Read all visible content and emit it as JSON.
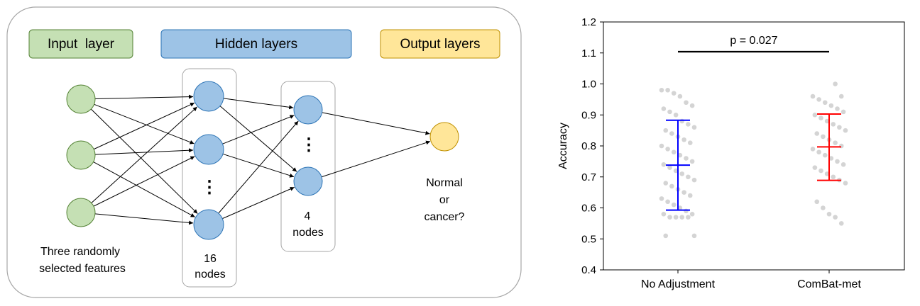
{
  "diagram": {
    "layer_headers": {
      "input": "Input  layer",
      "hidden": "Hidden layers",
      "output": "Output layers"
    },
    "labels": {
      "input_features_line1": "Three randomly",
      "input_features_line2": "selected features",
      "hidden1_count": "16",
      "hidden1_unit": "nodes",
      "hidden2_count": "4",
      "hidden2_unit": "nodes",
      "output_line1": "Normal",
      "output_line2": "or",
      "output_line3": "cancer?",
      "ellipsis": "⋮"
    },
    "colors": {
      "input_fill": "#c5e0b4",
      "input_stroke": "#548235",
      "hidden_fill": "#9dc3e6",
      "hidden_stroke": "#2e75b6",
      "output_fill": "#ffe699",
      "output_stroke": "#bf9000"
    }
  },
  "chart_data": {
    "type": "scatter",
    "categories": [
      "No Adjustment",
      "ComBat-met"
    ],
    "ylabel": "Accuracy",
    "xlabel": "",
    "ylim": [
      0.4,
      1.2
    ],
    "yticks": [
      "0.4",
      "0.5",
      "0.6",
      "0.7",
      "0.8",
      "0.9",
      "1.0",
      "1.1",
      "1.2"
    ],
    "annotation": "p = 0.027",
    "series": [
      {
        "category": "No Adjustment",
        "mean": 0.738,
        "lower": 0.593,
        "upper": 0.883,
        "color": "#0000ff",
        "points": [
          0.98,
          0.98,
          0.97,
          0.96,
          0.94,
          0.93,
          0.92,
          0.91,
          0.9,
          0.88,
          0.87,
          0.86,
          0.85,
          0.84,
          0.83,
          0.82,
          0.81,
          0.8,
          0.79,
          0.78,
          0.77,
          0.76,
          0.75,
          0.74,
          0.73,
          0.72,
          0.71,
          0.7,
          0.69,
          0.68,
          0.67,
          0.66,
          0.65,
          0.64,
          0.63,
          0.62,
          0.61,
          0.6,
          0.59,
          0.58,
          0.58,
          0.57,
          0.57,
          0.57,
          0.57,
          0.51,
          0.51
        ]
      },
      {
        "category": "ComBat-met",
        "mean": 0.797,
        "lower": 0.689,
        "upper": 0.903,
        "color": "#ff0000",
        "points": [
          1.0,
          0.96,
          0.96,
          0.95,
          0.94,
          0.93,
          0.92,
          0.91,
          0.9,
          0.89,
          0.88,
          0.87,
          0.86,
          0.85,
          0.84,
          0.83,
          0.82,
          0.81,
          0.8,
          0.79,
          0.78,
          0.77,
          0.76,
          0.75,
          0.74,
          0.73,
          0.72,
          0.71,
          0.7,
          0.69,
          0.68,
          0.62,
          0.6,
          0.58,
          0.57,
          0.55
        ]
      }
    ],
    "grid": false
  }
}
